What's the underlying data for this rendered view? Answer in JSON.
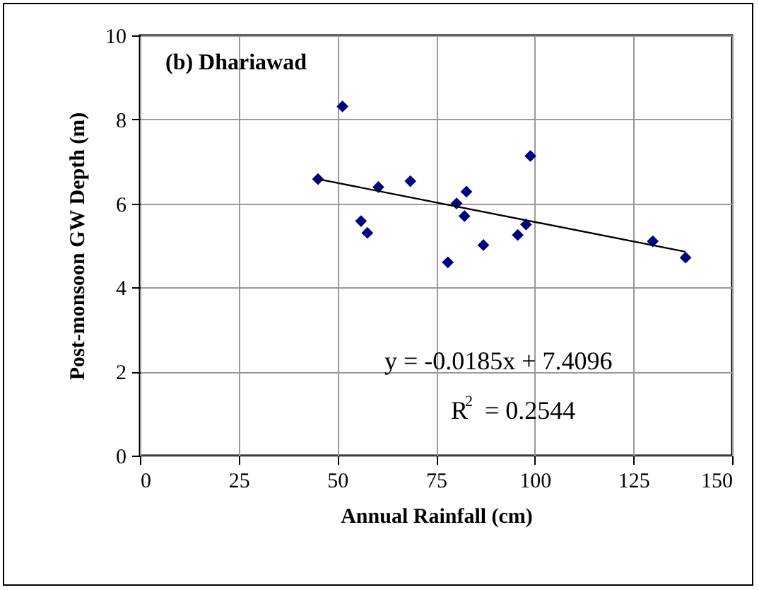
{
  "chart_data": {
    "type": "scatter",
    "title": "(b) Dhariawad",
    "xlabel": "Annual Rainfall (cm)",
    "ylabel": "Post-monsoon GW Depth (m)",
    "xlim": [
      0,
      150
    ],
    "xticks": [
      0,
      25,
      50,
      75,
      100,
      125,
      150
    ],
    "ylim": [
      0,
      10
    ],
    "yticks": [
      0,
      2,
      4,
      6,
      8,
      10
    ],
    "grid": true,
    "series": [
      {
        "marker": "diamond",
        "color": "#000080",
        "x": [
          45.1,
          51.3,
          56.0,
          57.6,
          60.4,
          68.5,
          78.0,
          80.2,
          82.7,
          82.2,
          87.0,
          95.7,
          97.8,
          98.9,
          129.9,
          138.2
        ],
        "values": [
          6.58,
          8.31,
          5.58,
          5.3,
          6.39,
          6.53,
          4.6,
          6.0,
          6.28,
          5.7,
          5.01,
          5.25,
          5.5,
          7.13,
          5.1,
          4.71
        ]
      },
      {
        "type": "line",
        "marker": "none",
        "color": "#000000",
        "x": [
          45.1,
          138.2
        ],
        "values": [
          6.58,
          4.85
        ]
      }
    ],
    "annotations": [
      "y = -0.0185x + 7.4096",
      "R$^{2}$ = 0.2544"
    ]
  }
}
